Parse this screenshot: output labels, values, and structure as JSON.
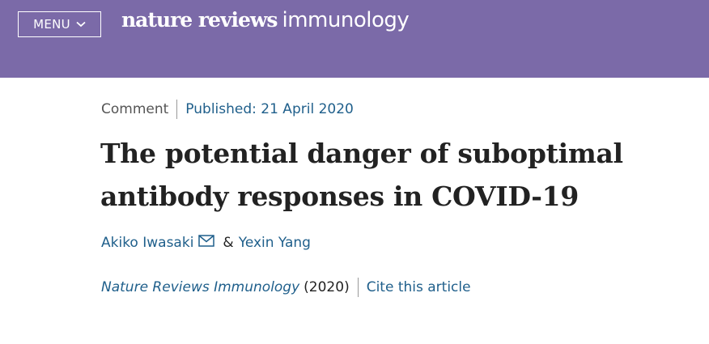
{
  "header": {
    "menu_label": "MENU",
    "brand_bold": "nature reviews",
    "brand_light": "immunology",
    "background_color": "#7b6aa8"
  },
  "article": {
    "type": "Comment",
    "published": "Published: 21 April 2020",
    "title": "The potential danger of suboptimal antibody responses in COVID-19",
    "authors": [
      {
        "name": "Akiko Iwasaki",
        "icon": "mail-icon"
      },
      {
        "name": "Yexin Yang"
      }
    ],
    "author_separator": "&",
    "journal": "Nature Reviews Immunology",
    "year": "(2020)",
    "cite_label": "Cite this article"
  },
  "colors": {
    "link": "#1f5f8b",
    "text": "#222222"
  }
}
